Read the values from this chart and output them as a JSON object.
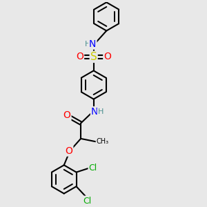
{
  "bg_color": "#e8e8e8",
  "bond_color": "#000000",
  "bond_width": 1.5,
  "atom_colors": {
    "C": "#000000",
    "H": "#4a9090",
    "N": "#0000ff",
    "O": "#ff0000",
    "S": "#cccc00",
    "Cl": "#00aa00"
  },
  "font_size": 9,
  "fig_size": [
    3.0,
    3.0
  ],
  "dpi": 100
}
